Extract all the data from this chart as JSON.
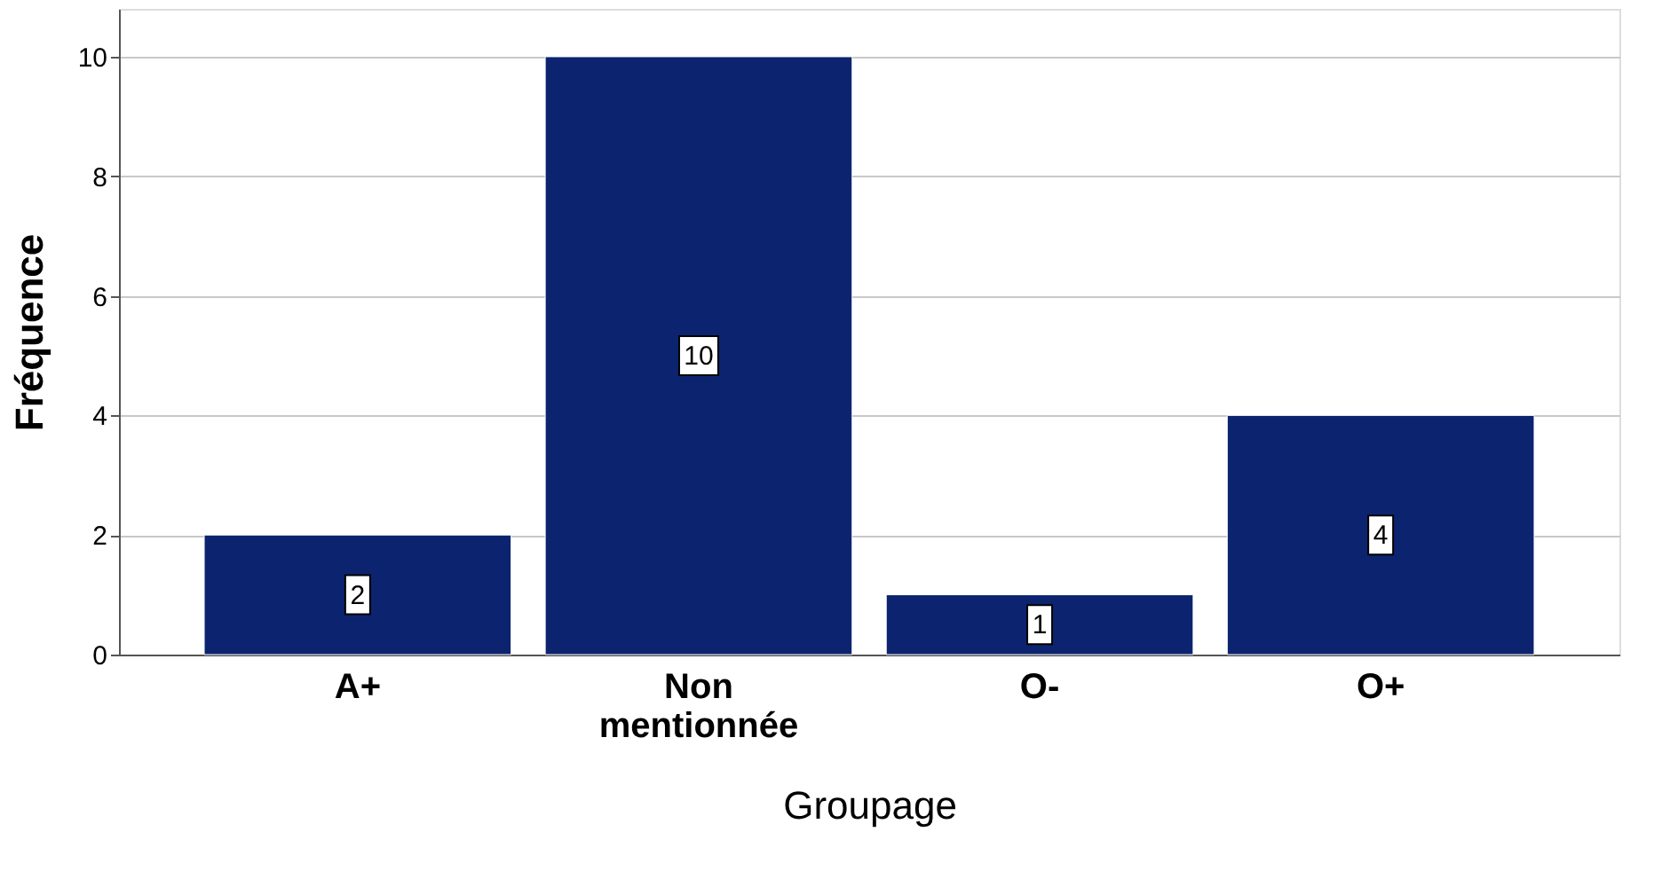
{
  "chart_data": {
    "type": "bar",
    "xlabel": "Groupage",
    "ylabel": "Fréquence",
    "categories": [
      "A+",
      "Non mentionnée",
      "O-",
      "O+"
    ],
    "values": [
      2,
      10,
      1,
      4
    ],
    "color": "#0c2470",
    "ylim": [
      0,
      10.8
    ],
    "yticks": [
      0,
      2,
      4,
      6,
      8,
      10
    ],
    "grid": "y",
    "data_labels": true
  }
}
